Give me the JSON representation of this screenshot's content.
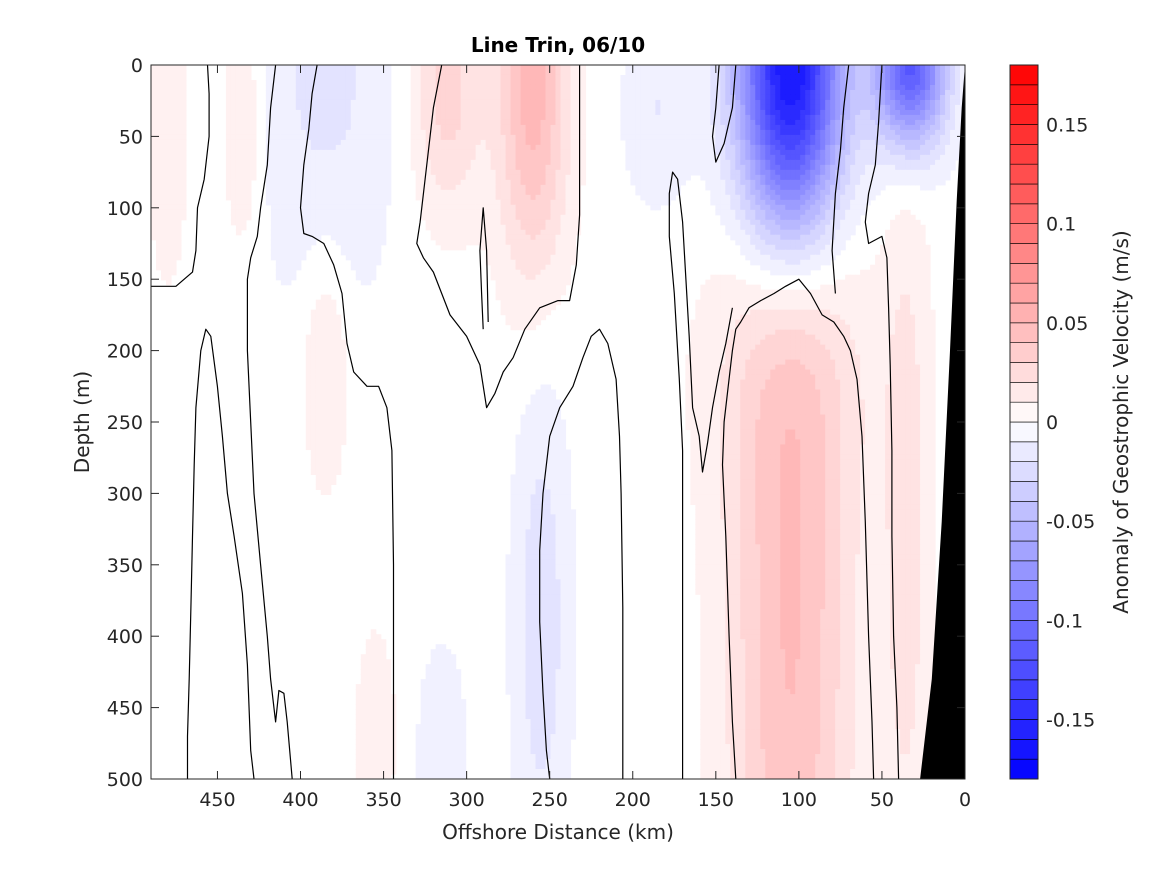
{
  "chart_data": {
    "type": "contour",
    "title": "Line Trin, 06/10",
    "xlabel": "Offshore Distance (km)",
    "ylabel": "Depth (m)",
    "colorbar_label": "Anomaly of Geostrophic Velocity (m/s)",
    "x_reversed": true,
    "y_reversed": true,
    "xlim": [
      0,
      490
    ],
    "ylim": [
      0,
      500
    ],
    "x_ticks": [
      450,
      400,
      350,
      300,
      250,
      200,
      150,
      100,
      50,
      0
    ],
    "x_tick_labels": [
      "450",
      "400",
      "350",
      "300",
      "250",
      "200",
      "150",
      "100",
      "50",
      "0"
    ],
    "y_ticks": [
      0,
      50,
      100,
      150,
      200,
      250,
      300,
      350,
      400,
      450,
      500
    ],
    "y_tick_labels": [
      "0",
      "50",
      "100",
      "150",
      "200",
      "250",
      "300",
      "350",
      "400",
      "450",
      "500"
    ],
    "colorbar_range": [
      -0.18,
      0.18
    ],
    "colorbar_step": 0.01,
    "colorbar_ticks": [
      0.15,
      0.1,
      0.05,
      0,
      -0.05,
      -0.1,
      -0.15
    ],
    "colorbar_tick_labels": [
      "0.15",
      "0.1",
      "0.05",
      "0",
      "-0.05",
      "-0.1",
      "-0.15"
    ],
    "colors": {
      "positive": "#ff0000",
      "negative": "#0000ff",
      "zero": "#ffffff",
      "bathymetry": "#000000"
    },
    "field_features": [
      {
        "x": 260,
        "depth": 20,
        "value": 0.05,
        "sx": 15,
        "sz": 90
      },
      {
        "x": 312,
        "depth": 20,
        "value": 0.03,
        "sx": 15,
        "sz": 60
      },
      {
        "x": 385,
        "depth": 0,
        "value": -0.018,
        "sx": 30,
        "sz": 120
      },
      {
        "x": 435,
        "depth": 40,
        "value": 0.018,
        "sx": 8,
        "sz": 60
      },
      {
        "x": 480,
        "depth": 50,
        "value": 0.015,
        "sx": 8,
        "sz": 70
      },
      {
        "x": 105,
        "depth": 5,
        "value": -0.17,
        "sx": 22,
        "sz": 80
      },
      {
        "x": 33,
        "depth": 0,
        "value": -0.12,
        "sx": 15,
        "sz": 40
      },
      {
        "x": 105,
        "depth": 420,
        "value": 0.045,
        "sx": 26,
        "sz": 190
      },
      {
        "x": 105,
        "depth": 210,
        "value": 0.018,
        "sx": 35,
        "sz": 80
      },
      {
        "x": 35,
        "depth": 330,
        "value": 0.02,
        "sx": 10,
        "sz": 180
      },
      {
        "x": 255,
        "depth": 390,
        "value": -0.022,
        "sx": 12,
        "sz": 120
      },
      {
        "x": 315,
        "depth": 480,
        "value": -0.015,
        "sx": 10,
        "sz": 50
      },
      {
        "x": 355,
        "depth": 470,
        "value": 0.015,
        "sx": 8,
        "sz": 50
      },
      {
        "x": 385,
        "depth": 210,
        "value": 0.018,
        "sx": 10,
        "sz": 60
      },
      {
        "x": 185,
        "depth": 30,
        "value": -0.015,
        "sx": 15,
        "sz": 50
      }
    ],
    "zero_contours": [
      [
        [
          490,
          155
        ],
        [
          475,
          155
        ],
        [
          470,
          150
        ],
        [
          465,
          145
        ],
        [
          463,
          130
        ],
        [
          462,
          100
        ],
        [
          458,
          80
        ],
        [
          455,
          50
        ],
        [
          455,
          20
        ],
        [
          456,
          0
        ]
      ],
      [
        [
          468,
          500
        ],
        [
          468,
          470
        ],
        [
          467,
          430
        ],
        [
          466,
          380
        ],
        [
          465,
          330
        ],
        [
          464,
          280
        ],
        [
          463,
          240
        ],
        [
          460,
          200
        ],
        [
          457,
          185
        ],
        [
          454,
          190
        ],
        [
          450,
          225
        ],
        [
          447,
          260
        ],
        [
          444,
          300
        ],
        [
          440,
          330
        ],
        [
          435,
          370
        ],
        [
          432,
          420
        ],
        [
          430,
          480
        ],
        [
          428,
          500
        ]
      ],
      [
        [
          415,
          0
        ],
        [
          418,
          30
        ],
        [
          420,
          70
        ],
        [
          424,
          100
        ],
        [
          426,
          120
        ],
        [
          430,
          135
        ],
        [
          432,
          150
        ],
        [
          432,
          200
        ],
        [
          430,
          250
        ],
        [
          428,
          300
        ],
        [
          424,
          350
        ],
        [
          420,
          400
        ],
        [
          418,
          430
        ],
        [
          415,
          460
        ],
        [
          413,
          438
        ],
        [
          410,
          440
        ],
        [
          408,
          460
        ],
        [
          405,
          500
        ]
      ],
      [
        [
          390,
          0
        ],
        [
          393,
          20
        ],
        [
          395,
          45
        ],
        [
          398,
          70
        ],
        [
          400,
          100
        ],
        [
          398,
          118
        ],
        [
          393,
          120
        ],
        [
          386,
          125
        ],
        [
          380,
          140
        ],
        [
          375,
          160
        ],
        [
          372,
          195
        ],
        [
          368,
          215
        ],
        [
          360,
          225
        ],
        [
          353,
          225
        ],
        [
          348,
          240
        ],
        [
          345,
          270
        ],
        [
          344,
          350
        ],
        [
          344,
          420
        ],
        [
          344,
          500
        ]
      ],
      [
        [
          315,
          0
        ],
        [
          320,
          30
        ],
        [
          325,
          80
        ],
        [
          328,
          110
        ],
        [
          330,
          125
        ],
        [
          326,
          135
        ],
        [
          320,
          145
        ],
        [
          315,
          160
        ],
        [
          310,
          175
        ],
        [
          300,
          190
        ],
        [
          292,
          210
        ],
        [
          288,
          240
        ],
        [
          283,
          230
        ],
        [
          278,
          215
        ],
        [
          272,
          205
        ],
        [
          265,
          185
        ],
        [
          256,
          170
        ],
        [
          245,
          165
        ],
        [
          238,
          165
        ],
        [
          234,
          140
        ],
        [
          232,
          105
        ],
        [
          232,
          50
        ],
        [
          232,
          0
        ]
      ],
      [
        [
          250,
          500
        ],
        [
          252,
          480
        ],
        [
          254,
          440
        ],
        [
          256,
          390
        ],
        [
          256,
          340
        ],
        [
          254,
          300
        ],
        [
          250,
          260
        ],
        [
          244,
          240
        ],
        [
          236,
          225
        ],
        [
          230,
          205
        ],
        [
          225,
          190
        ],
        [
          220,
          185
        ],
        [
          215,
          195
        ],
        [
          210,
          220
        ],
        [
          208,
          260
        ],
        [
          207,
          300
        ],
        [
          206,
          380
        ],
        [
          206,
          450
        ],
        [
          206,
          500
        ]
      ],
      [
        [
          290,
          185
        ],
        [
          291,
          160
        ],
        [
          292,
          130
        ],
        [
          290,
          100
        ],
        [
          288,
          130
        ],
        [
          287,
          180
        ]
      ],
      [
        [
          148,
          0
        ],
        [
          150,
          30
        ],
        [
          152,
          50
        ],
        [
          150,
          68
        ],
        [
          145,
          55
        ],
        [
          140,
          30
        ],
        [
          138,
          0
        ]
      ],
      [
        [
          138,
          500
        ],
        [
          140,
          460
        ],
        [
          142,
          400
        ],
        [
          144,
          330
        ],
        [
          146,
          280
        ],
        [
          145,
          250
        ],
        [
          143,
          230
        ],
        [
          140,
          200
        ],
        [
          138,
          185
        ],
        [
          135,
          180
        ],
        [
          130,
          170
        ],
        [
          123,
          165
        ],
        [
          115,
          160
        ],
        [
          108,
          155
        ],
        [
          100,
          150
        ],
        [
          93,
          160
        ],
        [
          86,
          175
        ],
        [
          79,
          180
        ],
        [
          73,
          190
        ],
        [
          69,
          200
        ],
        [
          65,
          220
        ],
        [
          62,
          260
        ],
        [
          60,
          320
        ],
        [
          58,
          400
        ],
        [
          56,
          460
        ],
        [
          55,
          500
        ]
      ],
      [
        [
          170,
          500
        ],
        [
          170,
          460
        ],
        [
          170,
          420
        ],
        [
          170,
          370
        ],
        [
          170,
          320
        ],
        [
          170,
          270
        ],
        [
          172,
          220
        ],
        [
          175,
          160
        ],
        [
          178,
          120
        ],
        [
          178,
          90
        ],
        [
          176,
          75
        ],
        [
          173,
          80
        ],
        [
          170,
          110
        ],
        [
          168,
          150
        ],
        [
          166,
          190
        ],
        [
          164,
          240
        ],
        [
          160,
          260
        ],
        [
          158,
          285
        ],
        [
          155,
          265
        ],
        [
          152,
          240
        ],
        [
          148,
          215
        ],
        [
          144,
          195
        ],
        [
          140,
          170
        ]
      ],
      [
        [
          70,
          0
        ],
        [
          73,
          30
        ],
        [
          75,
          60
        ],
        [
          78,
          90
        ],
        [
          80,
          130
        ],
        [
          78,
          160
        ]
      ],
      [
        [
          40,
          500
        ],
        [
          41,
          450
        ],
        [
          43,
          400
        ],
        [
          44,
          330
        ],
        [
          44,
          270
        ],
        [
          45,
          210
        ],
        [
          46,
          170
        ],
        [
          47,
          135
        ],
        [
          50,
          120
        ],
        [
          58,
          125
        ],
        [
          60,
          110
        ],
        [
          58,
          90
        ],
        [
          54,
          70
        ],
        [
          52,
          40
        ],
        [
          50,
          0
        ]
      ]
    ],
    "bathymetry_polygon": [
      [
        0,
        0
      ],
      [
        0,
        500
      ],
      [
        27,
        500
      ],
      [
        20,
        430
      ],
      [
        14,
        320
      ],
      [
        9,
        200
      ],
      [
        5,
        95
      ],
      [
        2,
        30
      ]
    ]
  }
}
